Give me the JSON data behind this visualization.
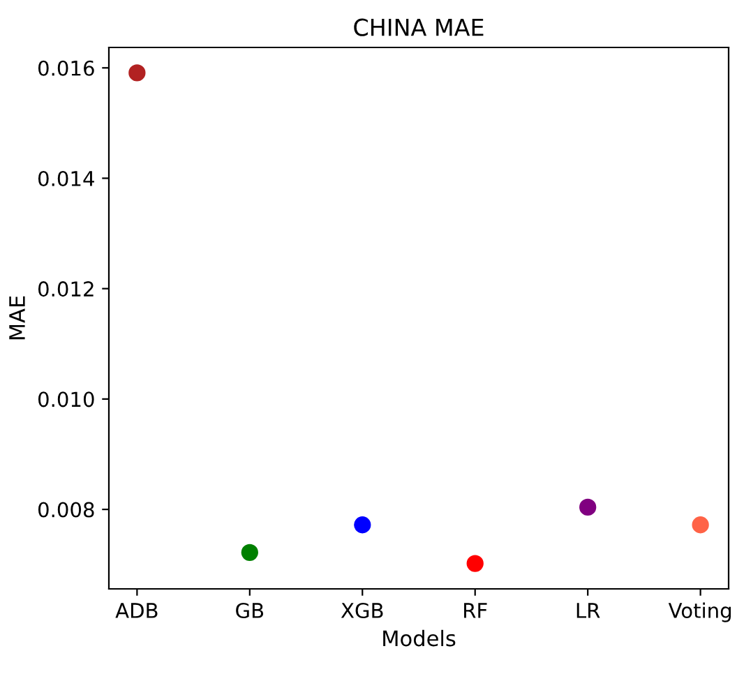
{
  "chart_data": {
    "type": "scatter",
    "title": "CHINA MAE",
    "xlabel": "Models",
    "ylabel": "MAE",
    "categories": [
      "ADB",
      "GB",
      "XGB",
      "RF",
      "LR",
      "Voting"
    ],
    "values": [
      0.01591,
      0.00722,
      0.00772,
      0.00702,
      0.00804,
      0.00772
    ],
    "colors": [
      "#b22222",
      "#008000",
      "#0000ff",
      "#ff0000",
      "#800080",
      "#ff6347"
    ],
    "ylim": [
      0.00656,
      0.01637
    ],
    "yticks": [
      0.008,
      {
        "value": 0.01,
        "label": "0.010"
      },
      0.012,
      0.014,
      0.016
    ],
    "grid": false,
    "marker": "circle"
  }
}
